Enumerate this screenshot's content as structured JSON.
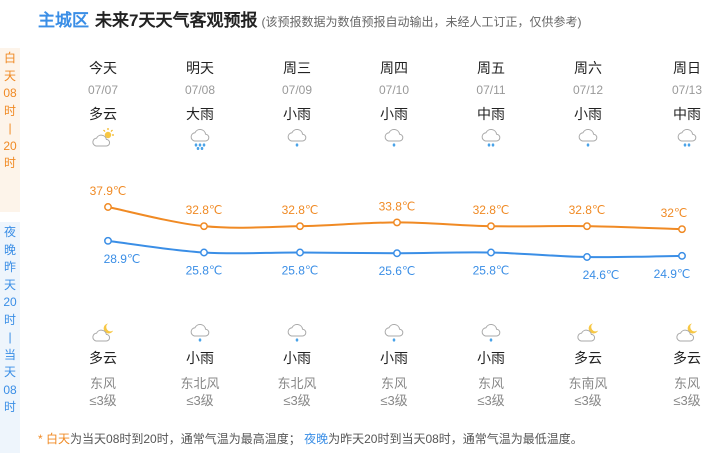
{
  "title": {
    "location": "主城区",
    "main": "未来7天天气客观预报",
    "note": "(该预报数据为数值预报自动输出，未经人工订正，仅供参考)"
  },
  "side": {
    "day": [
      "白",
      "天",
      "08",
      "时",
      "|",
      "20",
      "时"
    ],
    "night": [
      "夜",
      "晚",
      "昨",
      "天",
      "20",
      "时",
      "|",
      "当",
      "天",
      "08",
      "时"
    ]
  },
  "days": [
    {
      "week": "今天",
      "date": "07/07",
      "day_weather": "多云",
      "day_icon": "cloud-sun-icon",
      "night_icon": "cloud-moon-icon",
      "night_weather": "多云",
      "wind_dir": "东风",
      "wind_scale": "≤3级"
    },
    {
      "week": "明天",
      "date": "07/08",
      "day_weather": "大雨",
      "day_icon": "heavy-rain-icon",
      "night_icon": "light-rain-icon",
      "night_weather": "小雨",
      "wind_dir": "东北风",
      "wind_scale": "≤3级"
    },
    {
      "week": "周三",
      "date": "07/09",
      "day_weather": "小雨",
      "day_icon": "light-rain-icon",
      "night_icon": "light-rain-icon",
      "night_weather": "小雨",
      "wind_dir": "东北风",
      "wind_scale": "≤3级"
    },
    {
      "week": "周四",
      "date": "07/10",
      "day_weather": "小雨",
      "day_icon": "light-rain-icon",
      "night_icon": "light-rain-icon",
      "night_weather": "小雨",
      "wind_dir": "东风",
      "wind_scale": "≤3级"
    },
    {
      "week": "周五",
      "date": "07/11",
      "day_weather": "中雨",
      "day_icon": "moderate-rain-icon",
      "night_icon": "light-rain-icon",
      "night_weather": "小雨",
      "wind_dir": "东风",
      "wind_scale": "≤3级"
    },
    {
      "week": "周六",
      "date": "07/12",
      "day_weather": "小雨",
      "day_icon": "light-rain-icon",
      "night_icon": "cloud-moon-icon",
      "night_weather": "多云",
      "wind_dir": "东南风",
      "wind_scale": "≤3级"
    },
    {
      "week": "周日",
      "date": "07/13",
      "day_weather": "中雨",
      "day_icon": "moderate-rain-icon",
      "night_icon": "cloud-moon-icon",
      "night_weather": "多云",
      "wind_dir": "东风",
      "wind_scale": "≤3级"
    }
  ],
  "chart_data": {
    "type": "line",
    "x": [
      "07/07",
      "07/08",
      "07/09",
      "07/10",
      "07/11",
      "07/12",
      "07/13"
    ],
    "series": [
      {
        "values": [
          37.9,
          32.8,
          32.8,
          33.8,
          32.8,
          32.8,
          32
        ],
        "labels": [
          "37.9℃",
          "32.8℃",
          "32.8℃",
          "33.8℃",
          "32.8℃",
          "32.8℃",
          "32℃"
        ],
        "color": "#f08a24"
      },
      {
        "values": [
          28.9,
          25.8,
          25.8,
          25.6,
          25.8,
          24.6,
          24.9
        ],
        "labels": [
          "28.9℃",
          "25.8℃",
          "25.8℃",
          "25.6℃",
          "25.8℃",
          "24.6℃",
          "24.9℃"
        ],
        "color": "#3a8ee6"
      }
    ]
  },
  "footer": {
    "day_term": "白天",
    "day_text": "为当天08时到20时，通常气温为最高温度；",
    "night_term": "夜晚",
    "night_text": "为昨天20时到当天08时，通常气温为最低温度。"
  }
}
